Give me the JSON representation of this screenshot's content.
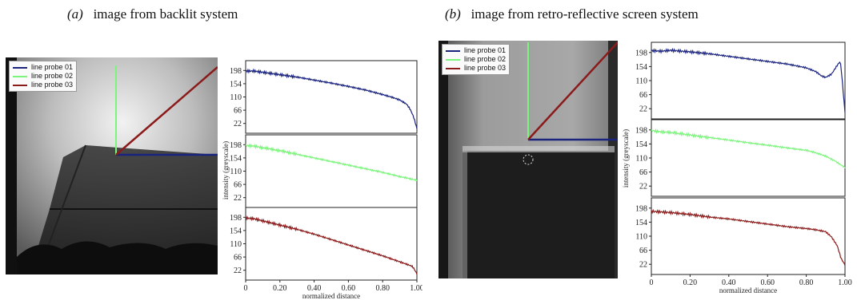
{
  "caption_a": {
    "tag": "(a)",
    "text": "image from backlit system"
  },
  "caption_b": {
    "tag": "(b)",
    "text": "image from retro-reflective screen system"
  },
  "legend": [
    {
      "label": "line probe 01",
      "color": "#1a237e"
    },
    {
      "label": "line probe 02",
      "color": "#7cf57c"
    },
    {
      "label": "line probe 03",
      "color": "#8b1a1a"
    }
  ],
  "chart_data": [
    {
      "type": "line",
      "panel": "(a)",
      "xlabel": "normalized distance",
      "ylabel": "intensity (greyscale)",
      "xticks": [
        "0",
        "0.20",
        "0.40",
        "0.60",
        "0.80",
        "1.00"
      ],
      "yticks": [
        "22",
        "66",
        "110",
        "154",
        "198"
      ],
      "xlim": [
        0,
        1
      ],
      "ylim": [
        0,
        220
      ],
      "series": [
        {
          "name": "line probe 01",
          "color": "#1a237e",
          "x": [
            0,
            0.05,
            0.1,
            0.2,
            0.3,
            0.4,
            0.5,
            0.6,
            0.7,
            0.8,
            0.86,
            0.9,
            0.94,
            0.96,
            0.98,
            1.0
          ],
          "y": [
            196,
            196,
            192,
            184,
            176,
            166,
            156,
            145,
            133,
            118,
            108,
            100,
            86,
            70,
            45,
            5
          ]
        },
        {
          "name": "line probe 02",
          "color": "#7cf57c",
          "x": [
            0,
            0.05,
            0.1,
            0.2,
            0.3,
            0.4,
            0.5,
            0.6,
            0.7,
            0.8,
            0.9,
            1.0
          ],
          "y": [
            196,
            193,
            188,
            178,
            166,
            154,
            142,
            130,
            118,
            106,
            92,
            80
          ]
        },
        {
          "name": "line probe 03",
          "color": "#8b1a1a",
          "x": [
            0,
            0.05,
            0.1,
            0.2,
            0.3,
            0.4,
            0.5,
            0.6,
            0.7,
            0.8,
            0.9,
            0.95,
            0.97,
            0.98,
            1.0
          ],
          "y": [
            196,
            193,
            186,
            172,
            158,
            142,
            124,
            106,
            88,
            70,
            50,
            40,
            36,
            30,
            10
          ]
        }
      ]
    },
    {
      "type": "line",
      "panel": "(b)",
      "xlabel": "normalized distance",
      "ylabel": "intensity (greyscale)",
      "xticks": [
        "0",
        "0.20",
        "0.40",
        "0.60",
        "0.80",
        "1.00"
      ],
      "yticks": [
        "22",
        "66",
        "110",
        "154",
        "198"
      ],
      "xlim": [
        0,
        1
      ],
      "ylim": [
        0,
        220
      ],
      "series": [
        {
          "name": "line probe 01",
          "color": "#1a237e",
          "x": [
            0,
            0.05,
            0.1,
            0.2,
            0.3,
            0.4,
            0.5,
            0.6,
            0.7,
            0.8,
            0.85,
            0.88,
            0.9,
            0.93,
            0.96,
            0.975,
            0.98,
            1.0
          ],
          "y": [
            204,
            202,
            205,
            200,
            194,
            186,
            178,
            170,
            162,
            150,
            138,
            124,
            120,
            130,
            158,
            170,
            150,
            10
          ]
        },
        {
          "name": "line probe 02",
          "color": "#7cf57c",
          "x": [
            0,
            0.05,
            0.1,
            0.2,
            0.3,
            0.4,
            0.5,
            0.6,
            0.7,
            0.8,
            0.85,
            0.9,
            0.95,
            1.0
          ],
          "y": [
            196,
            192,
            190,
            182,
            174,
            166,
            158,
            150,
            142,
            134,
            126,
            116,
            100,
            80
          ]
        },
        {
          "name": "line probe 03",
          "color": "#8b1a1a",
          "x": [
            0,
            0.05,
            0.1,
            0.2,
            0.3,
            0.4,
            0.5,
            0.6,
            0.7,
            0.8,
            0.85,
            0.9,
            0.93,
            0.96,
            0.98,
            1.0
          ],
          "y": [
            188,
            186,
            184,
            178,
            170,
            164,
            156,
            148,
            140,
            134,
            130,
            124,
            108,
            80,
            40,
            20
          ]
        }
      ]
    }
  ]
}
